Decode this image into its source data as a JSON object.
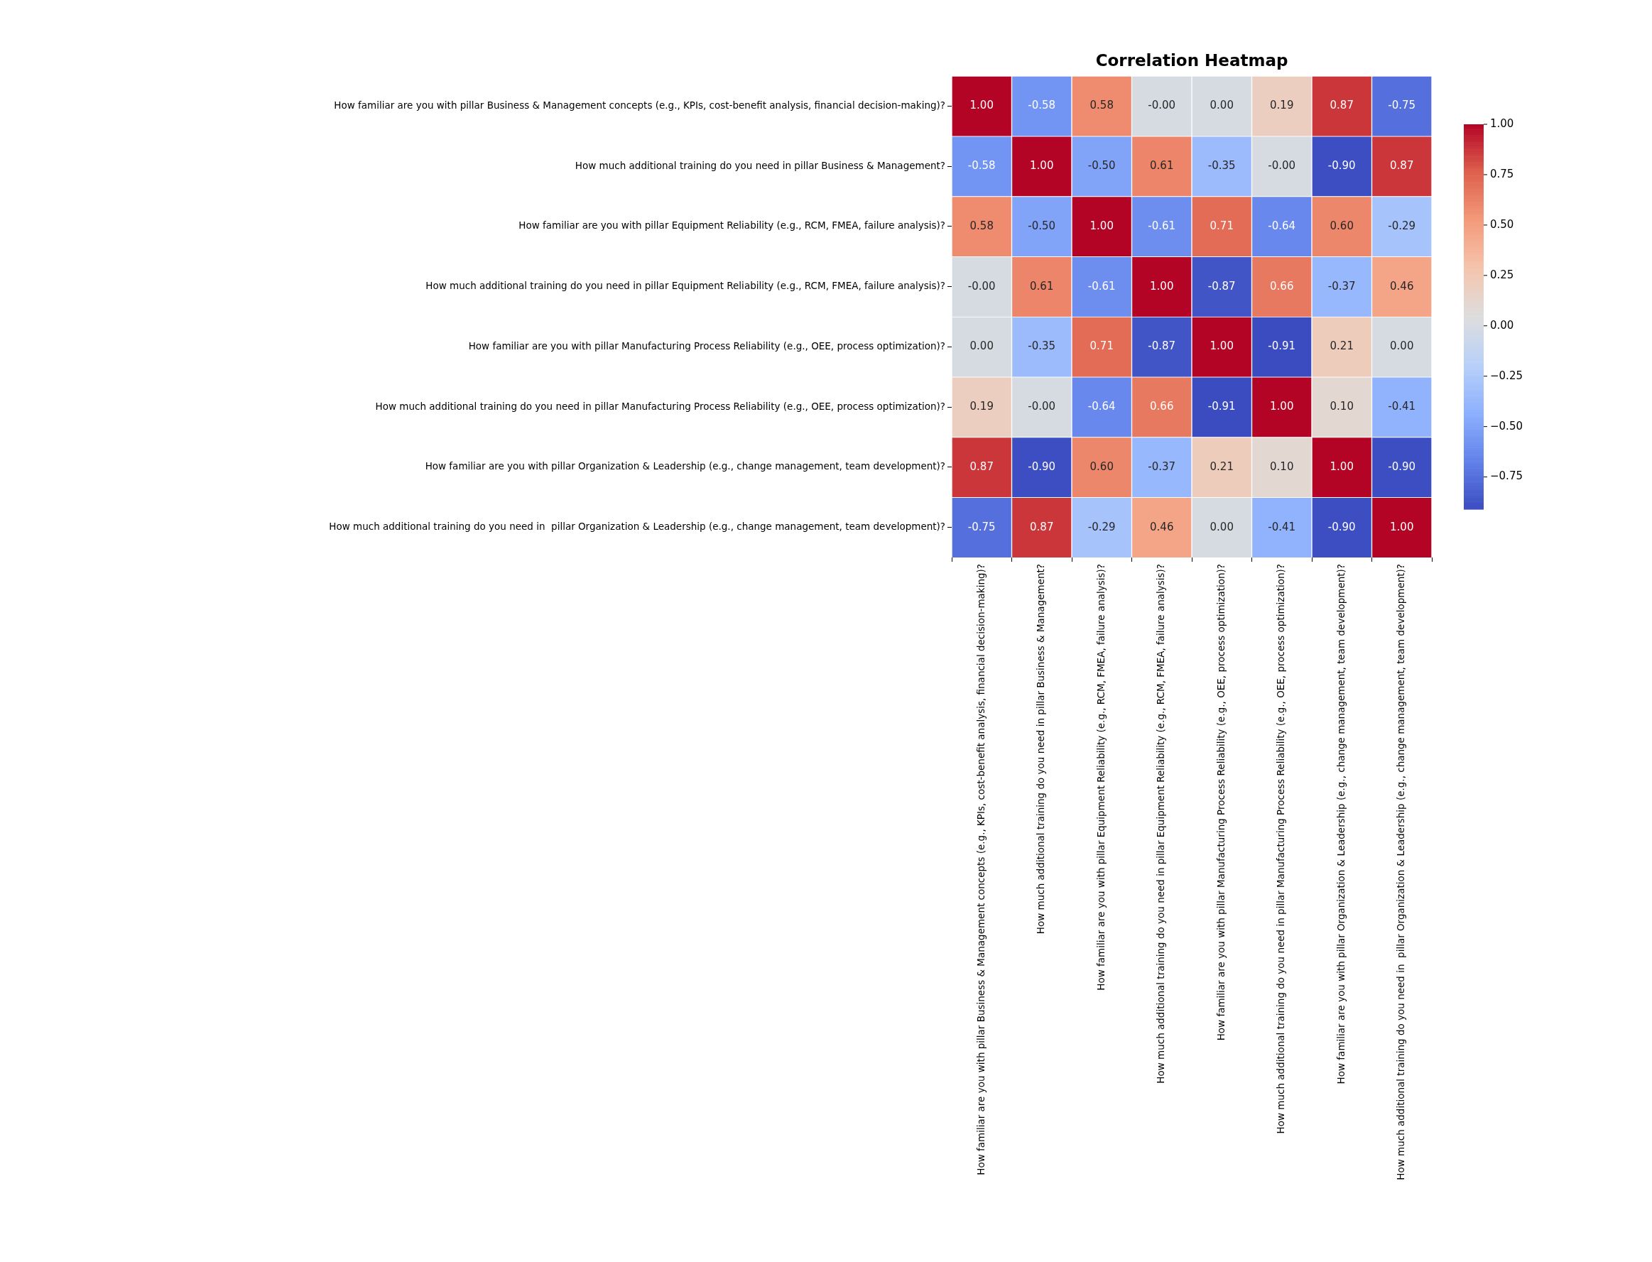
{
  "chart_data": {
    "type": "heatmap",
    "title": "Correlation Heatmap",
    "categories": [
      "How familiar are you with pillar Business & Management concepts (e.g., KPIs, cost-benefit analysis, financial decision-making)?",
      "How much additional training do you need in pillar Business & Management?",
      "How familiar are you with pillar Equipment Reliability (e.g., RCM, FMEA, failure analysis)?",
      "How much additional training do you need in pillar Equipment Reliability (e.g., RCM, FMEA, failure analysis)?",
      "How familiar are you with pillar Manufacturing Process Reliability (e.g., OEE, process optimization)?",
      "How much additional training do you need in pillar Manufacturing Process Reliability (e.g., OEE, process optimization)?",
      "How familiar are you with pillar Organization & Leadership (e.g., change management, team development)?",
      "How much additional training do you need in  pillar Organization & Leadership (e.g., change management, team development)?"
    ],
    "y_categories": [
      "How familiar are you with pillar Business & Management concepts (e.g., KPIs, cost-benefit analysis, financial decision-making)?",
      "How much additional training do you need in pillar Business & Management?",
      "How familiar are you with pillar Equipment Reliability (e.g., RCM, FMEA, failure analysis)?",
      "How much additional training do you need in pillar Equipment Reliability (e.g., RCM, FMEA, failure analysis)?",
      "How familiar are you with pillar Manufacturing Process Reliability (e.g., OEE, process optimization)?",
      "How much additional training do you need in pillar Manufacturing Process Reliability (e.g., OEE, process optimization)?",
      "How familiar are you with pillar Organization & Leadership (e.g., change management, team development)?",
      "How much additional training do you need in  pillar Organization & Leadership (e.g., change management, team development)?"
    ],
    "cells": [
      [
        1.0,
        -0.58,
        0.58,
        0.0,
        0.0,
        0.19,
        0.87,
        -0.75
      ],
      [
        -0.58,
        1.0,
        -0.5,
        0.61,
        -0.35,
        0.0,
        -0.9,
        0.87
      ],
      [
        0.58,
        -0.5,
        1.0,
        -0.61,
        0.71,
        -0.64,
        0.6,
        -0.29
      ],
      [
        0.0,
        0.61,
        -0.61,
        1.0,
        -0.87,
        0.66,
        -0.37,
        0.46
      ],
      [
        0.0,
        -0.35,
        0.71,
        -0.87,
        1.0,
        -0.91,
        0.21,
        0.0
      ],
      [
        0.19,
        0.0,
        -0.64,
        0.66,
        -0.91,
        1.0,
        0.1,
        -0.41
      ],
      [
        0.87,
        -0.9,
        0.6,
        -0.37,
        0.21,
        0.1,
        1.0,
        -0.9
      ],
      [
        -0.75,
        0.87,
        -0.29,
        0.46,
        0.0,
        -0.41,
        -0.9,
        1.0
      ]
    ],
    "cell_labels": [
      [
        "1.00",
        "-0.58",
        "0.58",
        "-0.00",
        "0.00",
        "0.19",
        "0.87",
        "-0.75"
      ],
      [
        "-0.58",
        "1.00",
        "-0.50",
        "0.61",
        "-0.35",
        "-0.00",
        "-0.90",
        "0.87"
      ],
      [
        "0.58",
        "-0.50",
        "1.00",
        "-0.61",
        "0.71",
        "-0.64",
        "0.60",
        "-0.29"
      ],
      [
        "-0.00",
        "0.61",
        "-0.61",
        "1.00",
        "-0.87",
        "0.66",
        "-0.37",
        "0.46"
      ],
      [
        "0.00",
        "-0.35",
        "0.71",
        "-0.87",
        "1.00",
        "-0.91",
        "0.21",
        "0.00"
      ],
      [
        "0.19",
        "-0.00",
        "-0.64",
        "0.66",
        "-0.91",
        "1.00",
        "0.10",
        "-0.41"
      ],
      [
        "0.87",
        "-0.90",
        "0.60",
        "-0.37",
        "0.21",
        "0.10",
        "1.00",
        "-0.90"
      ],
      [
        "-0.75",
        "0.87",
        "-0.29",
        "0.46",
        "0.00",
        "-0.41",
        "-0.90",
        "1.00"
      ]
    ],
    "clim": [
      -0.91,
      1.0
    ],
    "cticks": [
      {
        "value": -0.75,
        "label": "−0.75"
      },
      {
        "value": -0.5,
        "label": "−0.50"
      },
      {
        "value": -0.25,
        "label": "−0.25"
      },
      {
        "value": 0,
        "label": "0.00"
      },
      {
        "value": 0.25,
        "label": "0.25"
      },
      {
        "value": 0.5,
        "label": "0.50"
      },
      {
        "value": 0.75,
        "label": "0.75"
      },
      {
        "value": 1.0,
        "label": "1.00"
      }
    ]
  }
}
